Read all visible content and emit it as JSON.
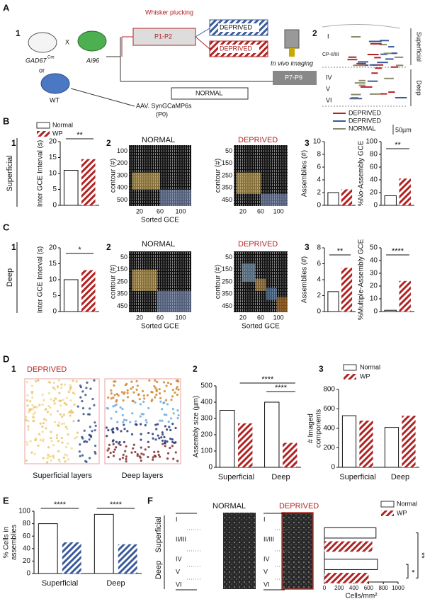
{
  "panel_labels": [
    "A",
    "B",
    "C",
    "D",
    "E",
    "F"
  ],
  "panel_a": {
    "step1": "1",
    "mouse1": "GAD67",
    "mouse1_sup": "Cre",
    "cross": "X",
    "mouse2": "Ai96",
    "or": "or",
    "mouse3": "WT",
    "virus": "AAV. SynGCaMP6s",
    "virus_age": "(P0)",
    "plucking": "Whisker plucking",
    "plucking_age": "P1-P2",
    "deprived_a": "DEPRIVED",
    "deprived_b": "DEPRIVED",
    "normal": "NORMAL",
    "imaging": "In vivo imaging",
    "imaging_age": "P7-P9",
    "step2": "2",
    "superficial": "Superficial",
    "deep": "Deep",
    "layers": [
      "I",
      "CP-II/III",
      "IV",
      "V",
      "VI"
    ],
    "legend": [
      "DEPRIVED",
      "DEPRIVED",
      "NORMAL"
    ],
    "scale": "50µm"
  },
  "legend_bc": [
    "Normal",
    "WP"
  ],
  "panel_b": {
    "sub": [
      "1",
      "2",
      "3"
    ],
    "side": "Superficial",
    "normal": "NORMAL",
    "deprived": "DEPRIVED",
    "xlabel": "Sorted GCE",
    "ylabel": "contour (#)",
    "normal_yticks": [
      100,
      200,
      300,
      400,
      500
    ],
    "deprived_yticks": [
      50,
      150,
      250,
      350,
      450
    ],
    "xticks": [
      20,
      60,
      100
    ]
  },
  "panel_c": {
    "sub": [
      "1",
      "2",
      "3"
    ],
    "side": "Deep",
    "normal": "NORMAL",
    "deprived": "DEPRIVED",
    "xlabel": "Sorted GCE",
    "ylabel": "contour (#)",
    "normal_yticks": [
      50,
      150,
      250,
      350,
      450
    ],
    "deprived_yticks": [
      50,
      150,
      250,
      350,
      450
    ],
    "xticks": [
      20,
      60,
      100
    ]
  },
  "panel_d": {
    "sub": [
      "1",
      "2",
      "3"
    ],
    "deprived": "DEPRIVED",
    "sup_layers": "Superficial layers",
    "deep_layers": "Deep layers",
    "legend": [
      "Normal",
      "WP"
    ]
  },
  "panel_f": {
    "normal": "NORMAL",
    "deprived": "DEPRIVED",
    "side_deep": "Deep",
    "side_sup": "Superficial",
    "layers": [
      "I",
      "II/III",
      "IV",
      "V",
      "VI"
    ],
    "legend": [
      "Normal",
      "WP"
    ]
  },
  "charts": [
    {
      "ylabel": "Inter GCE Interval (s)",
      "ylim": [
        0,
        20
      ],
      "yticks": [
        0,
        5,
        10,
        15,
        20
      ],
      "values": [
        11,
        14.5
      ],
      "significance": [
        "**"
      ]
    },
    {
      "ylabel": "Assemblies (#)",
      "ylim": [
        0,
        10
      ],
      "yticks": [
        0,
        2,
        4,
        6,
        8,
        10
      ],
      "values": [
        2,
        2.5
      ],
      "significance": []
    },
    {
      "ylabel": "%No-Assembly GCE",
      "ylim": [
        0,
        100
      ],
      "yticks": [
        0,
        20,
        40,
        60,
        80,
        100
      ],
      "values": [
        15,
        42
      ],
      "significance": [
        "**"
      ]
    },
    {
      "ylabel": "Inter GCE Interval (s)",
      "ylim": [
        0,
        20
      ],
      "yticks": [
        0,
        5,
        10,
        15,
        20
      ],
      "values": [
        10,
        13
      ],
      "significance": [
        "*"
      ]
    },
    {
      "ylabel": "Assemblies (#)",
      "ylim": [
        0,
        8
      ],
      "yticks": [
        0,
        2,
        4,
        6,
        8
      ],
      "values": [
        2.5,
        5.5
      ],
      "significance": [
        "**"
      ]
    },
    {
      "ylabel": "%Multiple-Assembly GCE",
      "ylim": [
        0,
        50
      ],
      "yticks": [
        0,
        10,
        20,
        30,
        40,
        50
      ],
      "values": [
        1,
        24
      ],
      "significance": [
        "****"
      ]
    },
    {
      "ylabel": "Assembly size (µm)",
      "ylim": [
        0,
        500
      ],
      "yticks": [
        0,
        100,
        200,
        300,
        400,
        500
      ],
      "categories": [
        "Superficial",
        "Deep"
      ],
      "values": [
        350,
        270,
        400,
        150
      ],
      "significance": [
        "****",
        "****"
      ]
    },
    {
      "ylabel": [
        "# Imaged",
        "components"
      ],
      "ylim": [
        0,
        800
      ],
      "yticks": [
        0,
        200,
        400,
        600,
        800
      ],
      "categories": [
        "Superficial",
        "Deep"
      ],
      "values": [
        530,
        480,
        410,
        530
      ],
      "significance": []
    },
    {
      "ylabel": [
        "% Cells in",
        "assemblies"
      ],
      "ylim": [
        0,
        100
      ],
      "yticks": [
        0,
        20,
        40,
        60,
        80,
        100
      ],
      "categories": [
        "Superficial",
        "Deep"
      ],
      "values": [
        80,
        50,
        95,
        47
      ],
      "significance": [
        "****",
        "****"
      ]
    },
    {
      "xlabel": "Cells/mm²",
      "xlim": [
        0,
        1000
      ],
      "xticks": [
        0,
        200,
        400,
        600,
        800,
        1000
      ],
      "values": [
        700,
        650,
        720,
        600
      ],
      "significance": [
        "**",
        "*"
      ]
    }
  ]
}
